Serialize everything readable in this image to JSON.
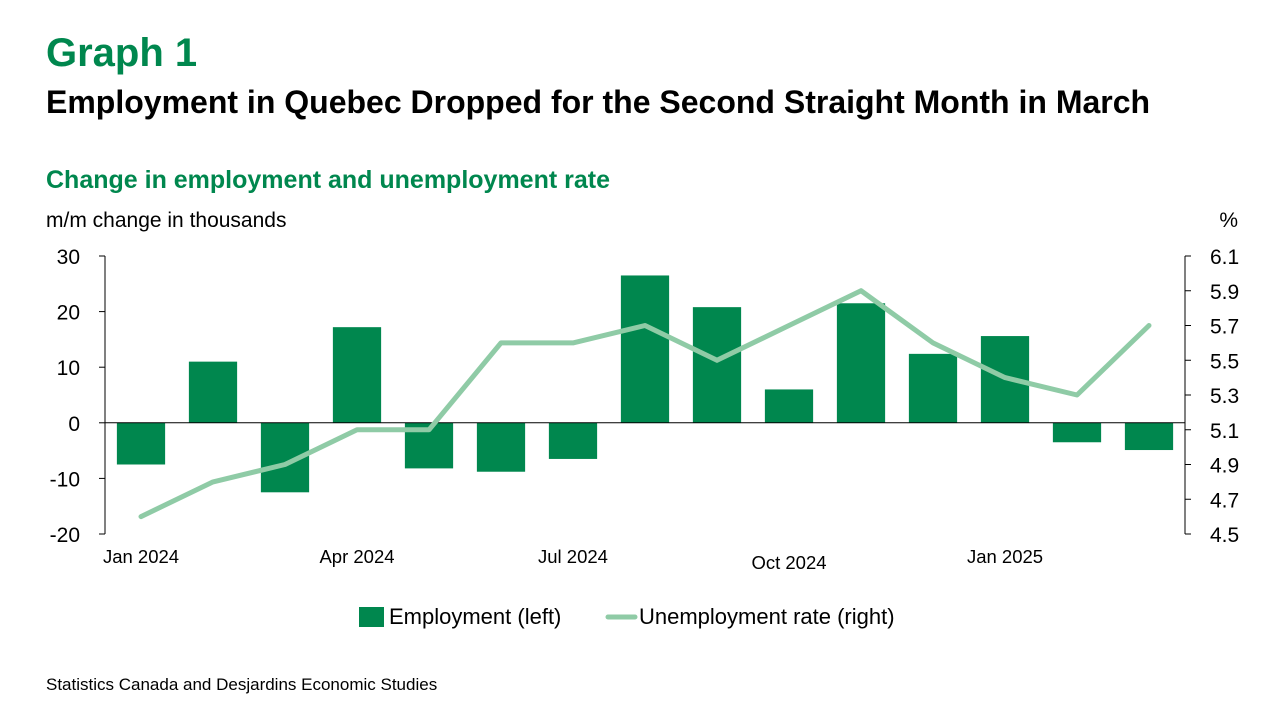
{
  "header": {
    "graph_number": "Graph 1",
    "title": "Employment in Quebec Dropped for the Second Straight Month in March"
  },
  "source": "Statistics Canada and Desjardins Economic Studies",
  "colors": {
    "accent": "#00874E",
    "employment_bar": "#00874E",
    "unemployment_line": "#8FCBA6",
    "axis": "#000000"
  },
  "chart_data": {
    "type": "bar",
    "title": "Change in employment and unemployment rate",
    "ylabel_left": "m/m change in thousands",
    "ylabel_right": "%",
    "categories": [
      "Jan 2024",
      "Feb 2024",
      "Mar 2024",
      "Apr 2024",
      "May 2024",
      "Jun 2024",
      "Jul 2024",
      "Aug 2024",
      "Sep 2024",
      "Oct 2024",
      "Nov 2024",
      "Dec 2024",
      "Jan 2025",
      "Feb 2025",
      "Mar 2025"
    ],
    "x_tick_labels": [
      {
        "index": 0,
        "label": "Jan 2024"
      },
      {
        "index": 3,
        "label": "Apr 2024"
      },
      {
        "index": 6,
        "label": "Jul 2024"
      },
      {
        "index": 9,
        "label": "Oct 2024"
      },
      {
        "index": 12,
        "label": "Jan 2025"
      }
    ],
    "ylim_left": [
      -20,
      30
    ],
    "yticks_left": [
      -20,
      -10,
      0,
      10,
      20,
      30
    ],
    "ylim_right": [
      4.5,
      6.1
    ],
    "yticks_right": [
      "4.5",
      "4.7",
      "4.9",
      "5.1",
      "5.3",
      "5.5",
      "5.7",
      "5.9",
      "6.1"
    ],
    "grid": false,
    "legend_position": "bottom",
    "series": [
      {
        "name": "Employment (left)",
        "type": "bar",
        "axis": "left",
        "values": [
          -7.5,
          11,
          -12.5,
          17.2,
          -8.2,
          -8.8,
          -6.5,
          26.5,
          20.8,
          6,
          21.5,
          12.4,
          15.6,
          -3.5,
          -4.9
        ]
      },
      {
        "name": "Unemployment rate (right)",
        "type": "line",
        "axis": "right",
        "values": [
          4.6,
          4.8,
          4.9,
          5.1,
          5.1,
          5.6,
          5.6,
          5.7,
          5.5,
          5.7,
          5.9,
          5.6,
          5.4,
          5.3,
          5.7
        ]
      }
    ]
  }
}
